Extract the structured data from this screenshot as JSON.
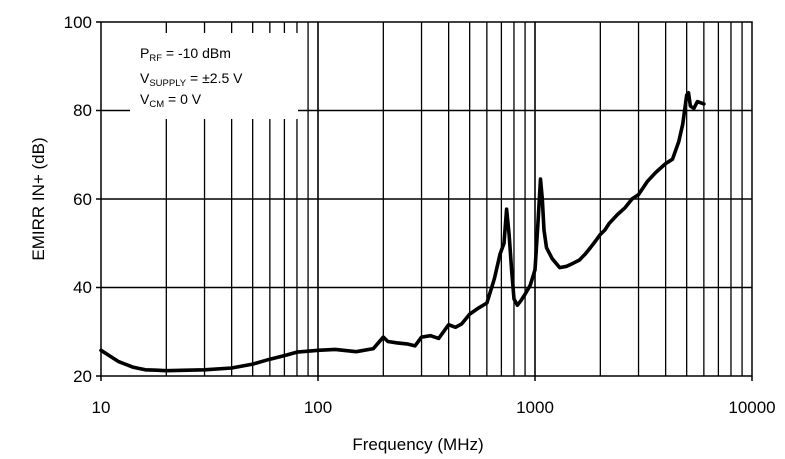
{
  "chart_data": {
    "type": "line",
    "title": "",
    "xlabel": "Frequency (MHz)",
    "ylabel": "EMIRR IN+ (dB)",
    "xscale": "log",
    "xlim": [
      10,
      10000
    ],
    "ylim": [
      20,
      100
    ],
    "grid": true,
    "x_ticks": [
      "10",
      "100",
      "1000",
      "10000"
    ],
    "y_ticks": [
      "20",
      "40",
      "60",
      "80",
      "100"
    ],
    "annotation": {
      "line1": {
        "main": "P",
        "sub": "RF",
        "rest": " = -10 dBm"
      },
      "line2": {
        "main": "V",
        "sub": "SUPPLY",
        "rest": " = ±2.5 V"
      },
      "line3": {
        "main": "V",
        "sub": "CM",
        "rest": " = 0 V"
      }
    },
    "series": [
      {
        "x": [
          10,
          11,
          12,
          14,
          16,
          18,
          20,
          25,
          30,
          40,
          50,
          60,
          70,
          80,
          90,
          100,
          120,
          150,
          180,
          200,
          210,
          230,
          260,
          280,
          300,
          330,
          360,
          400,
          430,
          460,
          500,
          550,
          600,
          650,
          690,
          720,
          740,
          760,
          780,
          800,
          830,
          860,
          900,
          950,
          1000,
          1030,
          1060,
          1080,
          1100,
          1130,
          1200,
          1300,
          1400,
          1500,
          1600,
          1700,
          1800,
          1900,
          2000,
          2100,
          2200,
          2400,
          2600,
          2800,
          3000,
          3300,
          3600,
          4000,
          4300,
          4600,
          4800,
          5000,
          5100,
          5200,
          5400,
          5600,
          6000
        ],
        "values": [
          25.8,
          24.5,
          23.3,
          22.0,
          21.4,
          21.3,
          21.2,
          21.3,
          21.4,
          21.8,
          22.7,
          23.8,
          24.6,
          25.4,
          25.6,
          25.8,
          26.0,
          25.5,
          26.2,
          28.8,
          27.8,
          27.5,
          27.2,
          26.8,
          28.8,
          29.1,
          28.5,
          31.6,
          31.0,
          31.8,
          34.0,
          35.4,
          36.5,
          42.0,
          47.5,
          50.0,
          57.7,
          52.0,
          44.0,
          37.4,
          36.0,
          37.0,
          38.5,
          40.5,
          44.0,
          54.0,
          64.5,
          60.0,
          53.0,
          49.0,
          46.5,
          44.5,
          44.8,
          45.5,
          46.2,
          47.5,
          49.0,
          50.5,
          52.0,
          53.0,
          54.5,
          56.5,
          58.0,
          60.0,
          61.0,
          64.0,
          66.0,
          68.0,
          69.0,
          73.0,
          77.0,
          83.5,
          84.0,
          81.0,
          80.5,
          82.0,
          81.5
        ]
      }
    ]
  }
}
